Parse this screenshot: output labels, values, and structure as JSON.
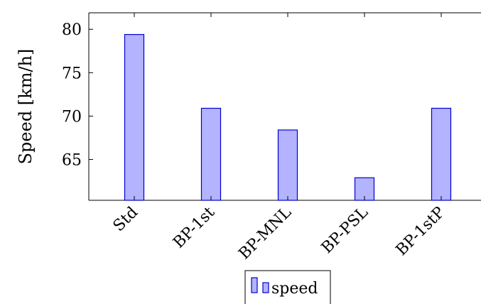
{
  "chart_data": {
    "type": "bar",
    "categories": [
      "Std",
      "BP-1st",
      "BP-MNL",
      "BP-PSL",
      "BP-1stP"
    ],
    "series": [
      {
        "name": "speed",
        "values": [
          79.4,
          70.9,
          68.4,
          62.9,
          70.9
        ]
      }
    ],
    "xlabel": "",
    "ylabel": "Speed [km/h]",
    "ylim": [
      60.3,
      81.9
    ],
    "yticks": [
      65,
      70,
      75,
      80
    ],
    "grid": false,
    "legend_position": "bottom-center",
    "colors": {
      "bar_fill": "#b3b3ff",
      "bar_stroke": "#0000cc"
    }
  }
}
